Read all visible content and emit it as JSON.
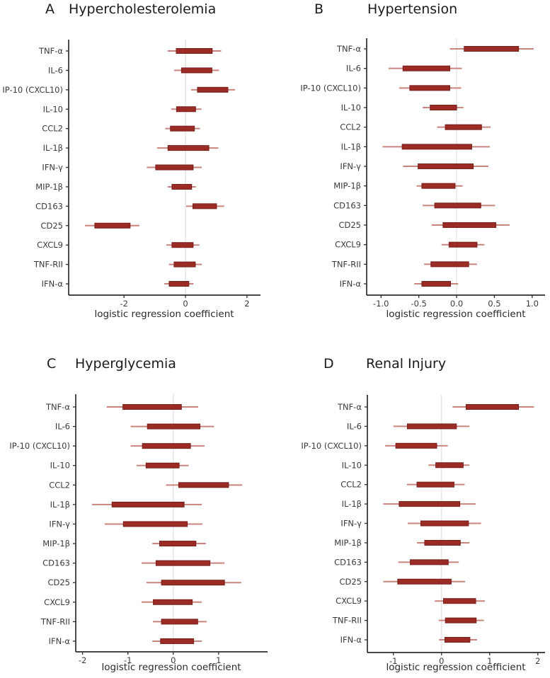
{
  "figure": {
    "xlabel": "logistic regression coefficient",
    "colors": {
      "box_fill": "#9a2b25",
      "box_stroke": "#77201d",
      "whisker": "#c9857e",
      "gridline": "#e7e7e7",
      "axis": "#2d2d2d",
      "text": "#3a3a3a"
    }
  },
  "chart_data": [
    {
      "type": "bar",
      "subtype": "horizontal-forest-range",
      "panel_letter": "A",
      "title": "Hypercholesterolemia",
      "xlabel": "logistic regression coefficient",
      "ylabel": "",
      "grid": "zero-line-only",
      "xlim": [
        -3.8,
        2.44
      ],
      "xticks": [
        -2,
        0,
        2
      ],
      "xtick_labels": [
        "-2",
        "0",
        "2"
      ],
      "rows": [
        {
          "label": "TNF-α",
          "box": [
            -0.3,
            0.87
          ],
          "whisker": [
            -0.58,
            1.16
          ]
        },
        {
          "label": "IL-6",
          "box": [
            -0.13,
            0.86
          ],
          "whisker": [
            -0.37,
            1.09
          ]
        },
        {
          "label": "IP-10 (CXCL10)",
          "box": [
            0.39,
            1.38
          ],
          "whisker": [
            0.18,
            1.61
          ]
        },
        {
          "label": "IL-10",
          "box": [
            -0.29,
            0.33
          ],
          "whisker": [
            -0.46,
            0.52
          ]
        },
        {
          "label": "CCL2",
          "box": [
            -0.49,
            0.29
          ],
          "whisker": [
            -0.66,
            0.47
          ]
        },
        {
          "label": "IL-1β",
          "box": [
            -0.57,
            0.76
          ],
          "whisker": [
            -0.92,
            1.07
          ]
        },
        {
          "label": "IFN-γ",
          "box": [
            -0.97,
            0.25
          ],
          "whisker": [
            -1.26,
            0.53
          ]
        },
        {
          "label": "MIP-1β",
          "box": [
            -0.44,
            0.2
          ],
          "whisker": [
            -0.58,
            0.34
          ]
        },
        {
          "label": "CD163",
          "box": [
            0.24,
            1.01
          ],
          "whisker": [
            0.02,
            1.26
          ]
        },
        {
          "label": "CD25",
          "box": [
            -2.95,
            -1.8
          ],
          "whisker": [
            -3.27,
            -1.5
          ]
        },
        {
          "label": "CXCL9",
          "box": [
            -0.44,
            0.25
          ],
          "whisker": [
            -0.62,
            0.45
          ]
        },
        {
          "label": "TNF-RII",
          "box": [
            -0.37,
            0.32
          ],
          "whisker": [
            -0.54,
            0.53
          ]
        },
        {
          "label": "IFN-α",
          "box": [
            -0.53,
            0.11
          ],
          "whisker": [
            -0.69,
            0.26
          ]
        }
      ]
    },
    {
      "type": "bar",
      "subtype": "horizontal-forest-range",
      "panel_letter": "B",
      "title": "Hypertension",
      "xlabel": "logistic regression coefficient",
      "ylabel": "",
      "grid": "zero-line-only",
      "xlim": [
        -1.19,
        1.17
      ],
      "xticks": [
        -1.0,
        -0.5,
        0.0,
        0.5,
        1.0
      ],
      "xtick_labels": [
        "-1.0",
        "-0.5",
        "0.0",
        "0.5",
        "1.0"
      ],
      "rows": [
        {
          "label": "TNF-α",
          "box": [
            0.1,
            0.82
          ],
          "whisker": [
            -0.09,
            1.02
          ]
        },
        {
          "label": "IL-6",
          "box": [
            -0.71,
            -0.09
          ],
          "whisker": [
            -0.9,
            0.07
          ]
        },
        {
          "label": "IP-10 (CXCL10)",
          "box": [
            -0.62,
            -0.09
          ],
          "whisker": [
            -0.76,
            0.06
          ]
        },
        {
          "label": "IL-10",
          "box": [
            -0.35,
            0.0
          ],
          "whisker": [
            -0.45,
            0.09
          ]
        },
        {
          "label": "CCL2",
          "box": [
            -0.15,
            0.33
          ],
          "whisker": [
            -0.26,
            0.45
          ]
        },
        {
          "label": "IL-1β",
          "box": [
            -0.72,
            0.2
          ],
          "whisker": [
            -0.98,
            0.44
          ]
        },
        {
          "label": "IFN-γ",
          "box": [
            -0.51,
            0.22
          ],
          "whisker": [
            -0.71,
            0.42
          ]
        },
        {
          "label": "MIP-1β",
          "box": [
            -0.46,
            -0.02
          ],
          "whisker": [
            -0.53,
            0.08
          ]
        },
        {
          "label": "CD163",
          "box": [
            -0.29,
            0.32
          ],
          "whisker": [
            -0.45,
            0.51
          ]
        },
        {
          "label": "CD25",
          "box": [
            -0.18,
            0.52
          ],
          "whisker": [
            -0.33,
            0.7
          ]
        },
        {
          "label": "CXCL9",
          "box": [
            -0.1,
            0.27
          ],
          "whisker": [
            -0.2,
            0.37
          ]
        },
        {
          "label": "TNF-RII",
          "box": [
            -0.34,
            0.16
          ],
          "whisker": [
            -0.43,
            0.27
          ]
        },
        {
          "label": "IFN-α",
          "box": [
            -0.46,
            -0.08
          ],
          "whisker": [
            -0.56,
            0.02
          ]
        }
      ]
    },
    {
      "type": "bar",
      "subtype": "horizontal-forest-range",
      "panel_letter": "C",
      "title": "Hyperglycemia",
      "xlabel": "logistic regression coefficient",
      "ylabel": "",
      "grid": "zero-line-only",
      "xlim": [
        -2.15,
        2.08
      ],
      "xticks": [
        -2,
        -1,
        0,
        1
      ],
      "xtick_labels": [
        "-2",
        "-1",
        "0",
        "1"
      ],
      "rows": [
        {
          "label": "TNF-α",
          "box": [
            -1.11,
            0.18
          ],
          "whisker": [
            -1.47,
            0.55
          ]
        },
        {
          "label": "IL-6",
          "box": [
            -0.57,
            0.59
          ],
          "whisker": [
            -0.94,
            0.9
          ]
        },
        {
          "label": "IP-10 (CXCL10)",
          "box": [
            -0.68,
            0.38
          ],
          "whisker": [
            -0.94,
            0.69
          ]
        },
        {
          "label": "IL-10",
          "box": [
            -0.6,
            0.13
          ],
          "whisker": [
            -0.81,
            0.34
          ]
        },
        {
          "label": "CCL2",
          "box": [
            0.12,
            1.22
          ],
          "whisker": [
            -0.16,
            1.52
          ]
        },
        {
          "label": "IL-1β",
          "box": [
            -1.35,
            0.24
          ],
          "whisker": [
            -1.79,
            0.63
          ]
        },
        {
          "label": "IFN-γ",
          "box": [
            -1.1,
            0.31
          ],
          "whisker": [
            -1.51,
            0.64
          ]
        },
        {
          "label": "MIP-1β",
          "box": [
            -0.3,
            0.5
          ],
          "whisker": [
            -0.46,
            0.72
          ]
        },
        {
          "label": "CD163",
          "box": [
            -0.38,
            0.81
          ],
          "whisker": [
            -0.7,
            1.13
          ]
        },
        {
          "label": "CD25",
          "box": [
            -0.26,
            1.13
          ],
          "whisker": [
            -0.59,
            1.5
          ]
        },
        {
          "label": "CXCL9",
          "box": [
            -0.44,
            0.42
          ],
          "whisker": [
            -0.7,
            0.63
          ]
        },
        {
          "label": "TNF-RII",
          "box": [
            -0.26,
            0.54
          ],
          "whisker": [
            -0.45,
            0.74
          ]
        },
        {
          "label": "IFN-α",
          "box": [
            -0.28,
            0.45
          ],
          "whisker": [
            -0.46,
            0.63
          ]
        }
      ]
    },
    {
      "type": "bar",
      "subtype": "horizontal-forest-range",
      "panel_letter": "D",
      "title": "Renal Injury",
      "xlabel": "logistic regression coefficient",
      "ylabel": "",
      "grid": "zero-line-only",
      "xlim": [
        -1.54,
        2.15
      ],
      "xticks": [
        -1,
        0,
        1,
        2
      ],
      "xtick_labels": [
        "-1",
        "0",
        "1",
        "2"
      ],
      "rows": [
        {
          "label": "TNF-α",
          "box": [
            0.51,
            1.6
          ],
          "whisker": [
            0.23,
            1.92
          ]
        },
        {
          "label": "IL-6",
          "box": [
            -0.71,
            0.31
          ],
          "whisker": [
            -1.0,
            0.58
          ]
        },
        {
          "label": "IP-10 (CXCL10)",
          "box": [
            -0.95,
            -0.1
          ],
          "whisker": [
            -1.17,
            0.13
          ]
        },
        {
          "label": "IL-10",
          "box": [
            -0.12,
            0.45
          ],
          "whisker": [
            -0.27,
            0.58
          ]
        },
        {
          "label": "CCL2",
          "box": [
            -0.51,
            0.26
          ],
          "whisker": [
            -0.72,
            0.48
          ]
        },
        {
          "label": "IL-1β",
          "box": [
            -0.88,
            0.38
          ],
          "whisker": [
            -1.21,
            0.71
          ]
        },
        {
          "label": "IFN-γ",
          "box": [
            -0.43,
            0.56
          ],
          "whisker": [
            -0.7,
            0.82
          ]
        },
        {
          "label": "MIP-1β",
          "box": [
            -0.35,
            0.39
          ],
          "whisker": [
            -0.51,
            0.58
          ]
        },
        {
          "label": "CD163",
          "box": [
            -0.65,
            0.14
          ],
          "whisker": [
            -0.9,
            0.36
          ]
        },
        {
          "label": "CD25",
          "box": [
            -0.91,
            0.2
          ],
          "whisker": [
            -1.21,
            0.49
          ]
        },
        {
          "label": "CXCL9",
          "box": [
            0.04,
            0.71
          ],
          "whisker": [
            -0.14,
            0.9
          ]
        },
        {
          "label": "TNF-RII",
          "box": [
            0.08,
            0.72
          ],
          "whisker": [
            -0.06,
            0.88
          ]
        },
        {
          "label": "IFN-α",
          "box": [
            0.07,
            0.59
          ],
          "whisker": [
            -0.05,
            0.74
          ]
        }
      ]
    }
  ]
}
